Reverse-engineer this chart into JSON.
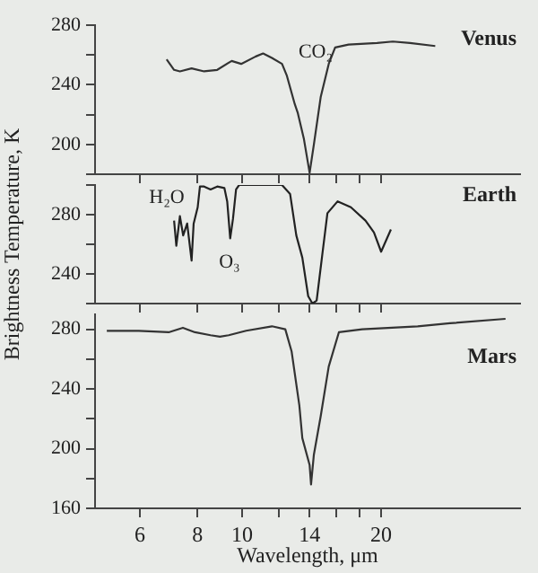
{
  "chart_data": [
    {
      "type": "line",
      "log": "x",
      "xlim": [
        4.8,
        40
      ],
      "xticks": [
        6,
        8,
        10,
        {
          "value": 12,
          "label": null
        },
        14,
        {
          "value": 16,
          "label": null
        },
        {
          "value": 18,
          "label": null
        },
        20
      ],
      "ylim": [
        180,
        280
      ],
      "yticks": [
        280,
        {
          "value": 260,
          "label": null
        },
        240,
        {
          "value": 220,
          "label": null
        },
        200,
        {
          "value": 180,
          "label": null
        }
      ],
      "tick_labels": "y",
      "grid": false,
      "legend": false,
      "annotations": [
        "CO₂"
      ],
      "series": [
        {
          "name": "Venus",
          "color": "#333333",
          "x": [
            6.86,
            7.12,
            7.33,
            7.77,
            8.27,
            8.83,
            9.49,
            9.95,
            10.7,
            11.1,
            11.6,
            12.2,
            12.5,
            13.0,
            13.2,
            13.6,
            14.0,
            14.3,
            14.8,
            15.4,
            15.9,
            17.0,
            19.6,
            21.2,
            23.1,
            26.2
          ],
          "values": [
            257,
            250,
            249,
            251,
            249,
            250,
            256,
            254,
            259,
            261,
            258,
            254,
            246,
            227,
            221,
            204,
            181,
            200,
            232,
            254,
            265,
            267,
            268,
            269,
            268,
            266
          ]
        }
      ]
    },
    {
      "type": "line",
      "log": "x",
      "xlim": [
        4.8,
        40
      ],
      "xticks": [
        6,
        8,
        10,
        {
          "value": 12,
          "label": null
        },
        14,
        {
          "value": 16,
          "label": null
        },
        {
          "value": 18,
          "label": null
        },
        20
      ],
      "ylim": [
        220,
        300
      ],
      "yticks": [
        {
          "value": 300,
          "label": null
        },
        280,
        {
          "value": 260,
          "label": null
        },
        240,
        {
          "value": 220,
          "label": null
        }
      ],
      "tick_labels": "y",
      "grid": false,
      "legend": false,
      "ylabel": "Brightness Temperature, K",
      "annotations": [
        "H₂O",
        "O₃"
      ],
      "series": [
        {
          "name": "Earth",
          "color": "#222222",
          "x": [
            7.12,
            7.2,
            7.33,
            7.45,
            7.6,
            7.77,
            7.85,
            8.01,
            8.1,
            8.27,
            8.54,
            8.83,
            9.15,
            9.28,
            9.42,
            9.55,
            9.7,
            9.85,
            10.2,
            11.1,
            12.2,
            12.7,
            13.1,
            13.5,
            13.9,
            14.2,
            14.5,
            14.9,
            15.3,
            16.1,
            17.2,
            18.5,
            19.3,
            20.0,
            21.0
          ],
          "values": [
            276,
            259,
            279,
            266,
            274,
            249,
            274,
            285,
            299,
            299,
            297,
            299,
            298,
            289,
            264,
            277,
            297,
            300,
            300,
            300,
            300,
            294,
            266,
            251,
            225,
            220,
            222,
            252,
            281,
            289,
            285,
            276,
            268,
            255,
            270
          ]
        }
      ]
    },
    {
      "type": "line",
      "log": "x",
      "xlim": [
        4.8,
        40
      ],
      "xticks": [
        6,
        8,
        10,
        {
          "value": 12,
          "label": null
        },
        14,
        {
          "value": 16,
          "label": null
        },
        {
          "value": 18,
          "label": null
        },
        20
      ],
      "ylim": [
        160,
        290
      ],
      "yticks": [
        280,
        {
          "value": 260,
          "label": null
        },
        240,
        {
          "value": 220,
          "label": null
        },
        200,
        {
          "value": 180,
          "label": null
        },
        160
      ],
      "grid": false,
      "legend": false,
      "xlabel": "Wavelength, μm",
      "series": [
        {
          "name": "Mars",
          "color": "#333333",
          "x": [
            5.09,
            5.97,
            6.93,
            7.44,
            7.9,
            8.54,
            8.95,
            9.35,
            10.2,
            11.6,
            12.4,
            12.8,
            13.3,
            13.5,
            14.0,
            14.1,
            14.3,
            14.8,
            15.4,
            16.2,
            18.2,
            24.0,
            28.2,
            37.2
          ],
          "values": [
            279,
            279,
            278,
            281,
            278,
            276,
            275,
            276,
            279,
            282,
            280,
            265,
            229,
            207,
            189,
            176,
            196,
            222,
            255,
            278,
            280,
            282,
            284,
            287
          ]
        }
      ]
    }
  ]
}
